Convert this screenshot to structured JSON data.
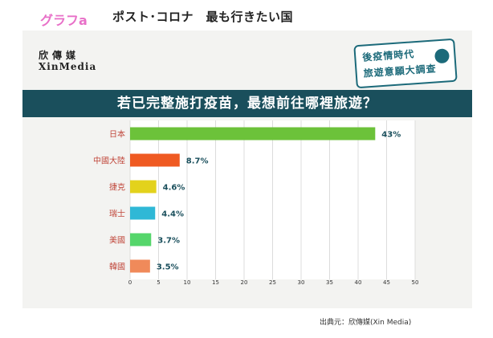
{
  "header": {
    "tag": "グラフa",
    "title": "ポスト･コロナ　最も行きたい国"
  },
  "logo": {
    "zh": "欣傳媒",
    "en": "XinMedia"
  },
  "badge": {
    "line1": "後疫情時代",
    "line2": "旅遊意願大調查"
  },
  "banner": {
    "text": "若已完整施打疫苗，最想前往哪裡旅遊？"
  },
  "source": "出典元：欣傳媒(Xin Media)",
  "chart_data": {
    "type": "bar",
    "orientation": "horizontal",
    "categories": [
      "日本",
      "中國大陸",
      "捷克",
      "瑞士",
      "美國",
      "韓國"
    ],
    "values": [
      43,
      8.7,
      4.6,
      4.4,
      3.7,
      3.5
    ],
    "value_labels": [
      "43%",
      "8.7%",
      "4.6%",
      "4.4%",
      "3.7%",
      "3.5%"
    ],
    "colors": [
      "#6cc23a",
      "#ef5a22",
      "#e3d21c",
      "#2fb8d6",
      "#55d66b",
      "#f08a5a"
    ],
    "xticks": [
      0,
      5,
      10,
      15,
      20,
      25,
      30,
      35,
      40,
      45,
      50
    ],
    "xlim": [
      0,
      50
    ],
    "grid": true,
    "label_color": "#c0463a",
    "value_label_color": "#1a4f5c"
  }
}
